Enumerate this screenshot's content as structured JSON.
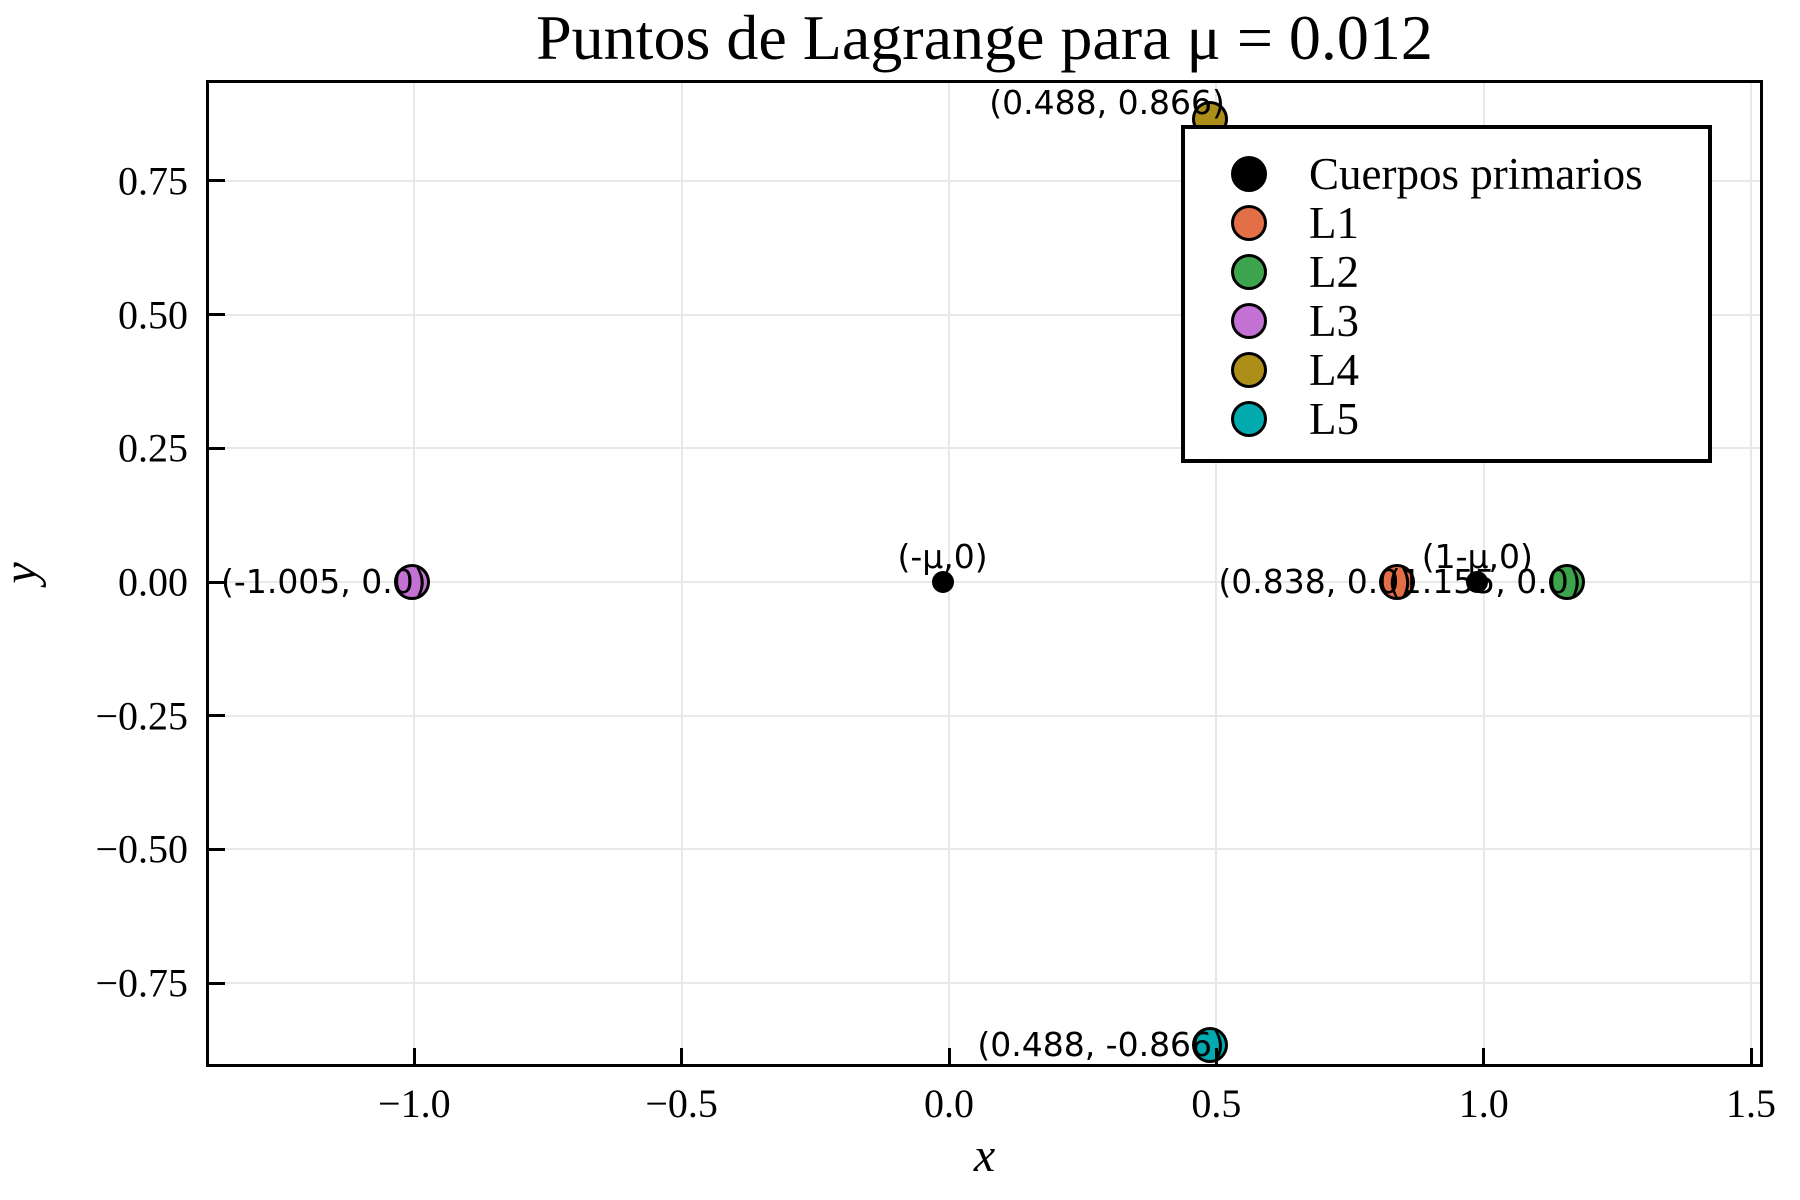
{
  "title": "Puntos de Lagrange para μ = 0.012",
  "axes": {
    "xlabel": "x",
    "ylabel": "y",
    "xtick_labels": [
      "−1.0",
      "−0.5",
      "0.0",
      "0.5",
      "1.0",
      "1.5"
    ],
    "ytick_labels": [
      "0.75",
      "0.50",
      "0.25",
      "0.00",
      "−0.25",
      "−0.50",
      "−0.75"
    ]
  },
  "legend": {
    "entries": [
      {
        "label": "Cuerpos primarios",
        "color": "#000000"
      },
      {
        "label": "L1",
        "color": "#E36F47"
      },
      {
        "label": "L2",
        "color": "#3DA44E"
      },
      {
        "label": "L3",
        "color": "#C371D2"
      },
      {
        "label": "L4",
        "color": "#AC8E18"
      },
      {
        "label": "L5",
        "color": "#00AAAE"
      }
    ]
  },
  "colors": {
    "background": "#ffffff",
    "grid": "#e8e8e8",
    "frame": "#000000",
    "annotation_text": "#000000"
  },
  "chart_data": {
    "type": "scatter",
    "title": "Puntos de Lagrange para μ = 0.012",
    "xlabel": "x",
    "ylabel": "y",
    "xlim": [
      -1.39,
      1.52
    ],
    "ylim": [
      -0.91,
      0.94
    ],
    "xticks": [
      -1.0,
      -0.5,
      0.0,
      0.5,
      1.0,
      1.5
    ],
    "yticks": [
      0.75,
      0.5,
      0.25,
      0.0,
      -0.25,
      -0.5,
      -0.75
    ],
    "grid": true,
    "legend_position": "top-right",
    "mu": 0.012,
    "series": [
      {
        "name": "Cuerpos primarios",
        "color": "#000000",
        "marker": "small",
        "points": [
          {
            "x": -0.012,
            "y": 0.0,
            "annotation": "(-μ,0)",
            "annotation_pos": "above"
          },
          {
            "x": 0.988,
            "y": 0.0,
            "annotation": "(1-μ,0)",
            "annotation_pos": "above"
          }
        ]
      },
      {
        "name": "L1",
        "color": "#E36F47",
        "marker": "big",
        "points": [
          {
            "x": 0.838,
            "y": 0.0,
            "annotation": "(0.838, 0.0)",
            "annotation_pos": "left"
          }
        ]
      },
      {
        "name": "L2",
        "color": "#3DA44E",
        "marker": "big",
        "points": [
          {
            "x": 1.155,
            "y": 0.0,
            "annotation": "(1.155, 0.0)",
            "annotation_pos": "left"
          }
        ]
      },
      {
        "name": "L3",
        "color": "#C371D2",
        "marker": "big",
        "points": [
          {
            "x": -1.005,
            "y": 0.0,
            "annotation": "(-1.005, 0.0)",
            "annotation_pos": "left"
          }
        ]
      },
      {
        "name": "L4",
        "color": "#AC8E18",
        "marker": "big",
        "points": [
          {
            "x": 0.488,
            "y": 0.866,
            "annotation": "(0.488, 0.866)",
            "annotation_pos": "left-raised"
          }
        ]
      },
      {
        "name": "L5",
        "color": "#00AAAE",
        "marker": "big",
        "points": [
          {
            "x": 0.488,
            "y": -0.866,
            "annotation": "(0.488, -0.866)",
            "annotation_pos": "left"
          }
        ]
      }
    ]
  }
}
